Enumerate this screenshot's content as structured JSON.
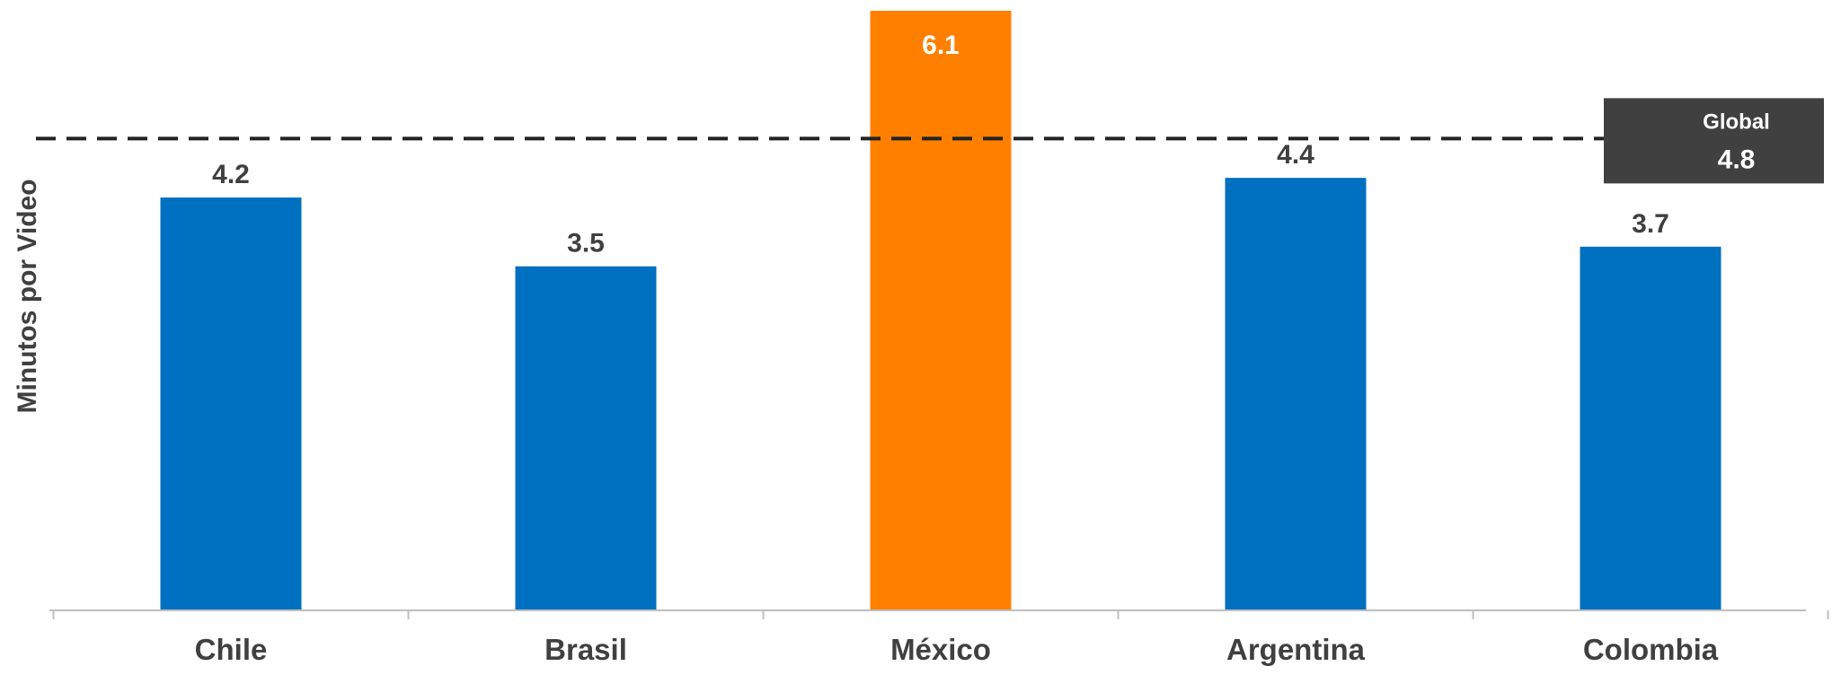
{
  "chart_data": {
    "type": "bar",
    "categories": [
      "Chile",
      "Brasil",
      "México",
      "Argentina",
      "Colombia"
    ],
    "values": [
      4.2,
      3.5,
      6.1,
      4.4,
      3.7
    ],
    "value_labels": [
      "4.2",
      "3.5",
      "6.1",
      "4.4",
      "3.7"
    ],
    "colors": [
      "#0070c0",
      "#0070c0",
      "#ff8000",
      "#0070c0",
      "#0070c0"
    ],
    "ylabel": "Minutos por Video",
    "ylim": [
      0,
      6.1
    ],
    "grid": false,
    "reference_line": {
      "name": "Global",
      "value": 4.8,
      "label": "4.8",
      "style": "dashed",
      "color": "#222222"
    },
    "label_box_color": "#404040"
  }
}
